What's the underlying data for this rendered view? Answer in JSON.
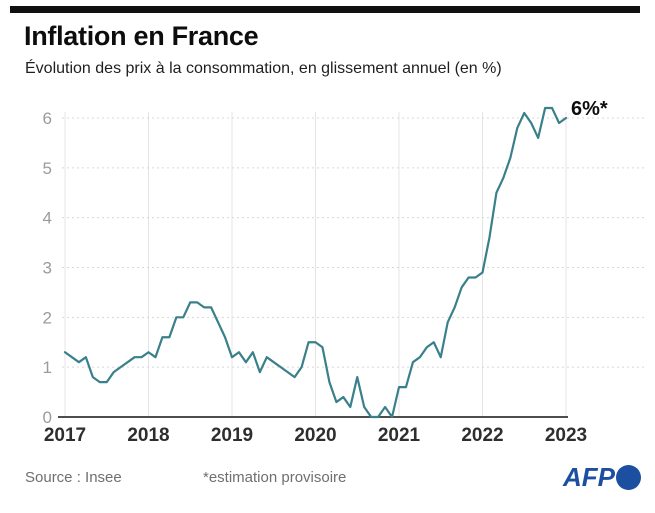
{
  "header": {
    "title": "Inflation en France",
    "subtitle": "Évolution des prix à la consommation, en glissement annuel (en %)"
  },
  "footer": {
    "source": "Source : Insee",
    "note": "*estimation provisoire",
    "logo": "AFP"
  },
  "colors": {
    "line_teal": "#39808a",
    "afp_blue": "#1c4f9f",
    "accent_bar": "#101010",
    "grid_gray": "#d8d8d8",
    "axis_gray": "#4d4d4d",
    "ytick_gray": "#9b9b9b",
    "xtick_dark": "#2e2e2e"
  },
  "chart_data": {
    "type": "line",
    "title": "Inflation en France",
    "subtitle": "Évolution des prix à la consommation, en glissement annuel (en %)",
    "frequency": "monthly",
    "x_start": "2017-01",
    "x_end": "2023-01",
    "x_tick_labels": [
      "2017",
      "2018",
      "2019",
      "2020",
      "2021",
      "2022",
      "2023"
    ],
    "y_ticks": [
      0,
      1,
      2,
      3,
      4,
      5,
      6
    ],
    "ylim": [
      0,
      6.4
    ],
    "grid": true,
    "values": [
      1.3,
      1.2,
      1.1,
      1.2,
      0.8,
      0.7,
      0.7,
      0.9,
      1.0,
      1.1,
      1.2,
      1.2,
      1.3,
      1.2,
      1.6,
      1.6,
      2.0,
      2.0,
      2.3,
      2.3,
      2.2,
      2.2,
      1.9,
      1.6,
      1.2,
      1.3,
      1.1,
      1.3,
      0.9,
      1.2,
      1.1,
      1.0,
      0.9,
      0.8,
      1.0,
      1.5,
      1.5,
      1.4,
      0.7,
      0.3,
      0.4,
      0.2,
      0.8,
      0.2,
      0.0,
      0.0,
      0.2,
      0.0,
      0.6,
      0.6,
      1.1,
      1.2,
      1.4,
      1.5,
      1.2,
      1.9,
      2.2,
      2.6,
      2.8,
      2.8,
      2.9,
      3.6,
      4.5,
      4.8,
      5.2,
      5.8,
      6.1,
      5.9,
      5.6,
      6.2,
      6.2,
      5.9,
      6.0
    ],
    "annotation": {
      "text": "6%*",
      "value": 6.0,
      "x": "2023-01",
      "position": "end"
    }
  }
}
